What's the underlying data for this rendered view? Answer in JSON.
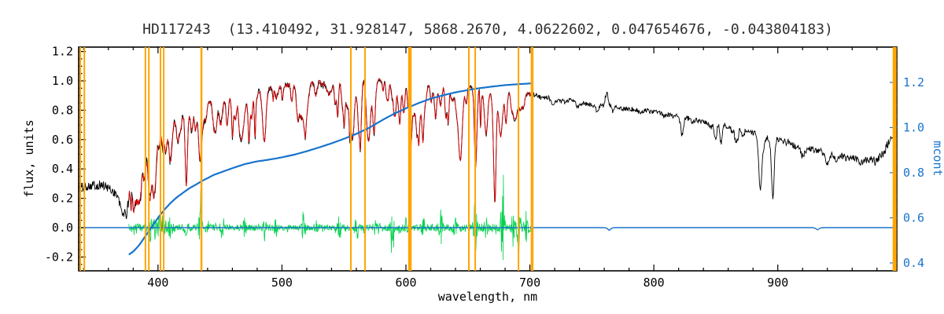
{
  "title": {
    "text": "HD117243  (13.410492, 31.928147, 5868.2670, 4.0622602, 0.047654676, -0.043804183)"
  },
  "chart_data": {
    "type": "line",
    "title": "HD117243  (13.410492, 31.928147, 5868.2670, 4.0622602, 0.047654676, -0.043804183)",
    "xlabel": "wavelength, nm",
    "ylabel_left": "flux, units",
    "ylabel_right": "mcont",
    "xlim": [
      336,
      996
    ],
    "ylim_left": [
      -0.294,
      1.23
    ],
    "ylim_right": [
      0.365,
      1.3565
    ],
    "xticks": [
      400,
      500,
      600,
      700,
      800,
      900
    ],
    "yticks_left": [
      -0.2,
      0.0,
      0.2,
      0.4,
      0.6,
      0.8,
      1.0,
      1.2
    ],
    "yticks_right": [
      0.4,
      0.6,
      0.8,
      1.0,
      1.2
    ],
    "x_minor_step": 20,
    "y_minor_step": 0.05,
    "legend": "none",
    "grid": false,
    "colors": {
      "observed": "#000000",
      "model": "#dd0000",
      "residual": "#00d24b",
      "mcont": "#1874CD",
      "marker": "#FFA500",
      "axis": "#000000",
      "title": "#303030"
    },
    "series": {
      "observed": {
        "name": "observed spectrum",
        "axis": "left",
        "range": [
          336,
          996
        ],
        "step": 0.4,
        "seed": 101,
        "envelope": [
          [
            336,
            0.27
          ],
          [
            345,
            0.29
          ],
          [
            355,
            0.29
          ],
          [
            362,
            0.26
          ],
          [
            368,
            0.22
          ],
          [
            372,
            0.18
          ],
          [
            376,
            0.22
          ],
          [
            380,
            0.33
          ],
          [
            384,
            0.43
          ],
          [
            388,
            0.5
          ],
          [
            392,
            0.55
          ],
          [
            396,
            0.58
          ],
          [
            400,
            0.62
          ],
          [
            405,
            0.67
          ],
          [
            410,
            0.71
          ],
          [
            415,
            0.74
          ],
          [
            420,
            0.77
          ],
          [
            425,
            0.79
          ],
          [
            430,
            0.8
          ],
          [
            435,
            0.82
          ],
          [
            440,
            0.85
          ],
          [
            445,
            0.87
          ],
          [
            450,
            0.89
          ],
          [
            460,
            0.92
          ],
          [
            470,
            0.94
          ],
          [
            480,
            0.94
          ],
          [
            490,
            0.95
          ],
          [
            500,
            0.97
          ],
          [
            510,
            0.97
          ],
          [
            520,
            0.98
          ],
          [
            530,
            1.0
          ],
          [
            540,
            1.0
          ],
          [
            550,
            1.01
          ],
          [
            560,
            1.02
          ],
          [
            570,
            1.02
          ],
          [
            580,
            1.01
          ],
          [
            590,
            1.0
          ],
          [
            600,
            1.01
          ],
          [
            610,
            1.0
          ],
          [
            620,
            0.99
          ],
          [
            630,
            0.98
          ],
          [
            640,
            0.97
          ],
          [
            650,
            0.96
          ],
          [
            660,
            0.95
          ],
          [
            670,
            0.94
          ],
          [
            680,
            0.93
          ],
          [
            690,
            0.92
          ],
          [
            700,
            0.91
          ],
          [
            710,
            0.89
          ],
          [
            720,
            0.88
          ],
          [
            730,
            0.87
          ],
          [
            740,
            0.85
          ],
          [
            750,
            0.84
          ],
          [
            760,
            0.83
          ],
          [
            770,
            0.82
          ],
          [
            780,
            0.81
          ],
          [
            790,
            0.8
          ],
          [
            800,
            0.79
          ],
          [
            810,
            0.77
          ],
          [
            820,
            0.76
          ],
          [
            830,
            0.74
          ],
          [
            840,
            0.72
          ],
          [
            850,
            0.71
          ],
          [
            860,
            0.69
          ],
          [
            870,
            0.67
          ],
          [
            880,
            0.65
          ],
          [
            890,
            0.63
          ],
          [
            900,
            0.6
          ],
          [
            910,
            0.58
          ],
          [
            920,
            0.55
          ],
          [
            930,
            0.53
          ],
          [
            940,
            0.51
          ],
          [
            950,
            0.49
          ],
          [
            960,
            0.47
          ],
          [
            970,
            0.46
          ],
          [
            980,
            0.47
          ],
          [
            986,
            0.52
          ],
          [
            991,
            0.62
          ],
          [
            994,
            0.56
          ],
          [
            996,
            0.5
          ]
        ],
        "noise_profile": [
          [
            336,
            0.032
          ],
          [
            370,
            0.035
          ],
          [
            385,
            0.045
          ],
          [
            400,
            0.032
          ],
          [
            430,
            0.025
          ],
          [
            470,
            0.02
          ],
          [
            520,
            0.018
          ],
          [
            600,
            0.016
          ],
          [
            680,
            0.015
          ],
          [
            750,
            0.016
          ],
          [
            820,
            0.018
          ],
          [
            880,
            0.02
          ],
          [
            930,
            0.022
          ],
          [
            970,
            0.025
          ],
          [
            996,
            0.035
          ]
        ]
      },
      "model": {
        "name": "model fit spectrum",
        "axis": "left",
        "range": [
          376.5,
          702
        ],
        "step": 0.4,
        "seed": 202,
        "noise_scale": 0.6
      },
      "residual": {
        "name": "fit residual",
        "axis": "left",
        "range": [
          376.5,
          702
        ],
        "step": 0.3,
        "seed": 303,
        "base_amp": [
          [
            376,
            0.03
          ],
          [
            400,
            0.026
          ],
          [
            450,
            0.021
          ],
          [
            500,
            0.019
          ],
          [
            550,
            0.021
          ],
          [
            600,
            0.023
          ],
          [
            650,
            0.026
          ],
          [
            702,
            0.03
          ]
        ],
        "spikes": [
          [
            393.4,
            0.09
          ],
          [
            396.9,
            0.08
          ],
          [
            401,
            0.06
          ],
          [
            405,
            0.05
          ],
          [
            410,
            0.07
          ],
          [
            422,
            0.05
          ],
          [
            434,
            0.12
          ],
          [
            440,
            0.05
          ],
          [
            452,
            0.06
          ],
          [
            470,
            0.05
          ],
          [
            486,
            0.08
          ],
          [
            495,
            0.05
          ],
          [
            517,
            0.09
          ],
          [
            527,
            0.05
          ],
          [
            546,
            0.07
          ],
          [
            560,
            0.05
          ],
          [
            575,
            0.05
          ],
          [
            589,
            0.1
          ],
          [
            600,
            0.05
          ],
          [
            614,
            0.05
          ],
          [
            628,
            0.12
          ],
          [
            640,
            0.07
          ],
          [
            656,
            0.22
          ],
          [
            665,
            0.08
          ],
          [
            678,
            0.3
          ],
          [
            686,
            0.14
          ],
          [
            691,
            0.2
          ],
          [
            697,
            0.1
          ]
        ]
      },
      "mcont": {
        "name": "continuum (mcont)",
        "axis": "right",
        "range": [
          376.5,
          702
        ],
        "step": 1.5,
        "points": [
          [
            376,
            0.435
          ],
          [
            380,
            0.45
          ],
          [
            385,
            0.48
          ],
          [
            390,
            0.52
          ],
          [
            395,
            0.56
          ],
          [
            400,
            0.6
          ],
          [
            405,
            0.635
          ],
          [
            410,
            0.665
          ],
          [
            415,
            0.69
          ],
          [
            420,
            0.71
          ],
          [
            425,
            0.73
          ],
          [
            430,
            0.745
          ],
          [
            435,
            0.762
          ],
          [
            440,
            0.776
          ],
          [
            445,
            0.79
          ],
          [
            450,
            0.8
          ],
          [
            460,
            0.82
          ],
          [
            470,
            0.838
          ],
          [
            480,
            0.85
          ],
          [
            490,
            0.858
          ],
          [
            500,
            0.868
          ],
          [
            510,
            0.88
          ],
          [
            520,
            0.895
          ],
          [
            530,
            0.912
          ],
          [
            540,
            0.93
          ],
          [
            550,
            0.95
          ],
          [
            560,
            0.972
          ],
          [
            570,
            0.998
          ],
          [
            580,
            1.03
          ],
          [
            590,
            1.06
          ],
          [
            600,
            1.085
          ],
          [
            610,
            1.108
          ],
          [
            620,
            1.128
          ],
          [
            630,
            1.143
          ],
          [
            640,
            1.156
          ],
          [
            650,
            1.166
          ],
          [
            660,
            1.175
          ],
          [
            670,
            1.182
          ],
          [
            680,
            1.188
          ],
          [
            690,
            1.192
          ],
          [
            702,
            1.196
          ]
        ]
      },
      "zero_line": {
        "name": "residual zero line",
        "axis": "left",
        "value": 0.0,
        "range": [
          336,
          996
        ],
        "dips": [
          [
            764,
            0.018
          ],
          [
            932,
            0.015
          ]
        ]
      }
    },
    "absorption_dips": [
      [
        371,
        0.08,
        2.0
      ],
      [
        374.5,
        0.1,
        1.2
      ],
      [
        380.5,
        0.1,
        0.9
      ],
      [
        383.8,
        0.14,
        1.0
      ],
      [
        389.0,
        0.16,
        1.1
      ],
      [
        393.4,
        0.34,
        1.3
      ],
      [
        396.9,
        0.3,
        1.3
      ],
      [
        404.0,
        0.1,
        0.9
      ],
      [
        410.2,
        0.2,
        1.2
      ],
      [
        422.7,
        0.1,
        0.8
      ],
      [
        434.0,
        0.26,
        1.4
      ],
      [
        438.5,
        0.09,
        0.9
      ],
      [
        447.0,
        0.08,
        0.8
      ],
      [
        486.1,
        0.16,
        1.2
      ],
      [
        495.0,
        0.06,
        0.8
      ],
      [
        517.2,
        0.13,
        1.6
      ],
      [
        527.0,
        0.07,
        0.9
      ],
      [
        540.0,
        0.06,
        0.8
      ],
      [
        589.2,
        0.13,
        1.1
      ],
      [
        616.0,
        0.05,
        0.9
      ],
      [
        628.0,
        0.07,
        0.9
      ],
      [
        656.3,
        0.53,
        1.0
      ],
      [
        672.0,
        0.55,
        0.9
      ],
      [
        686.0,
        0.1,
        1.2
      ],
      [
        695.0,
        0.08,
        0.9
      ],
      [
        719.0,
        0.05,
        1.5
      ],
      [
        762.0,
        -0.09,
        1.2
      ],
      [
        823.0,
        0.06,
        1.0
      ],
      [
        849.8,
        0.1,
        0.9
      ],
      [
        854.2,
        0.12,
        0.9
      ],
      [
        866.2,
        0.1,
        0.9
      ],
      [
        886.0,
        0.36,
        1.1
      ],
      [
        896.0,
        0.4,
        1.1
      ],
      [
        920.0,
        0.06,
        1.5
      ],
      [
        940.0,
        0.08,
        1.8
      ]
    ],
    "line_forest": [
      {
        "seed": 7,
        "count": 170,
        "range": [
          378,
          700
        ],
        "max_depth": 0.26
      },
      {
        "seed": 11,
        "count": 45,
        "range": [
          702,
          990
        ],
        "max_depth": 0.06
      }
    ],
    "marker_lines": {
      "color": "#FFA500",
      "lines": [
        {
          "wavelength": 337.3,
          "width": 2
        },
        {
          "wavelength": 340.6,
          "width": 2
        },
        {
          "wavelength": 389.9,
          "width": 2
        },
        {
          "wavelength": 392.6,
          "width": 2
        },
        {
          "wavelength": 402.0,
          "width": 2
        },
        {
          "wavelength": 404.6,
          "width": 2
        },
        {
          "wavelength": 435.0,
          "width": 2.5
        },
        {
          "wavelength": 555.6,
          "width": 2
        },
        {
          "wavelength": 567.0,
          "width": 2
        },
        {
          "wavelength": 603.2,
          "width": 4.5
        },
        {
          "wavelength": 650.8,
          "width": 2
        },
        {
          "wavelength": 655.9,
          "width": 2
        },
        {
          "wavelength": 690.8,
          "width": 2
        },
        {
          "wavelength": 701.8,
          "width": 3.5
        },
        {
          "wavelength": 994.2,
          "width": 5
        }
      ]
    }
  }
}
